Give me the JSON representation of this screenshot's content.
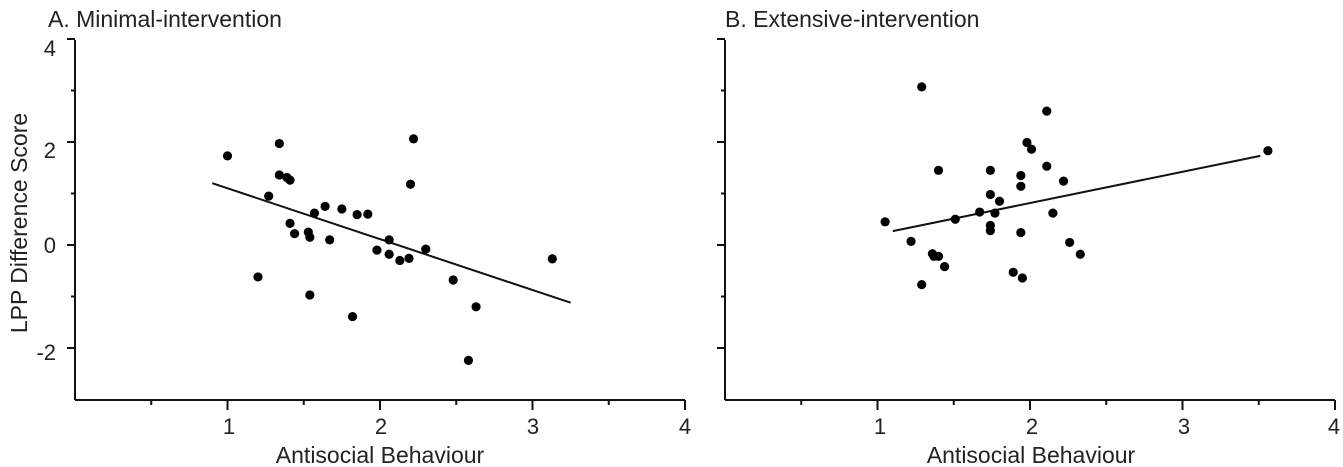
{
  "figure": {
    "ylabel": "LPP Difference Score"
  },
  "chart_data": [
    {
      "type": "scatter",
      "title": "A. Minimal-intervention",
      "xlabel": "Antisocial Behaviour",
      "ylabel": "LPP Difference Score",
      "xlim": [
        0,
        4
      ],
      "ylim": [
        -3,
        4
      ],
      "x_major_ticks": [
        1,
        2,
        3,
        4
      ],
      "y_major_ticks": [
        -2,
        0,
        2,
        4
      ],
      "grid": false,
      "points": [
        {
          "x": 1.0,
          "y": 1.73
        },
        {
          "x": 1.2,
          "y": -0.62
        },
        {
          "x": 1.27,
          "y": 0.95
        },
        {
          "x": 1.34,
          "y": 1.97
        },
        {
          "x": 1.34,
          "y": 1.36
        },
        {
          "x": 1.39,
          "y": 1.31
        },
        {
          "x": 1.41,
          "y": 1.26
        },
        {
          "x": 1.41,
          "y": 0.42
        },
        {
          "x": 1.44,
          "y": 0.22
        },
        {
          "x": 1.53,
          "y": 0.25
        },
        {
          "x": 1.54,
          "y": 0.15
        },
        {
          "x": 1.54,
          "y": -0.97
        },
        {
          "x": 1.57,
          "y": 0.62
        },
        {
          "x": 1.64,
          "y": 0.75
        },
        {
          "x": 1.67,
          "y": 0.1
        },
        {
          "x": 1.75,
          "y": 0.7
        },
        {
          "x": 1.82,
          "y": -1.39
        },
        {
          "x": 1.85,
          "y": 0.59
        },
        {
          "x": 1.92,
          "y": 0.6
        },
        {
          "x": 1.98,
          "y": -0.1
        },
        {
          "x": 2.06,
          "y": 0.1
        },
        {
          "x": 2.06,
          "y": -0.18
        },
        {
          "x": 2.13,
          "y": -0.3
        },
        {
          "x": 2.19,
          "y": -0.26
        },
        {
          "x": 2.2,
          "y": 1.18
        },
        {
          "x": 2.22,
          "y": 2.06
        },
        {
          "x": 2.3,
          "y": -0.08
        },
        {
          "x": 2.48,
          "y": -0.68
        },
        {
          "x": 2.58,
          "y": -2.24
        },
        {
          "x": 2.63,
          "y": -1.2
        },
        {
          "x": 3.13,
          "y": -0.27
        }
      ],
      "fit_line": {
        "x": [
          0.9,
          3.25
        ],
        "y": [
          1.2,
          -1.12
        ]
      }
    },
    {
      "type": "scatter",
      "title": "B. Extensive-intervention",
      "xlabel": "Antisocial Behaviour",
      "xlim": [
        0,
        4
      ],
      "ylim": [
        -3,
        4
      ],
      "x_major_ticks": [
        1,
        2,
        3,
        4
      ],
      "y_major_ticks": [
        -2,
        0,
        2,
        4
      ],
      "grid": false,
      "points": [
        {
          "x": 1.05,
          "y": 0.45
        },
        {
          "x": 1.22,
          "y": 0.07
        },
        {
          "x": 1.29,
          "y": 3.07
        },
        {
          "x": 1.29,
          "y": -0.77
        },
        {
          "x": 1.36,
          "y": -0.17
        },
        {
          "x": 1.37,
          "y": -0.22
        },
        {
          "x": 1.4,
          "y": -0.22
        },
        {
          "x": 1.4,
          "y": 1.45
        },
        {
          "x": 1.44,
          "y": -0.42
        },
        {
          "x": 1.51,
          "y": 0.5
        },
        {
          "x": 1.67,
          "y": 0.64
        },
        {
          "x": 1.74,
          "y": 1.45
        },
        {
          "x": 1.74,
          "y": 0.98
        },
        {
          "x": 1.74,
          "y": 0.38
        },
        {
          "x": 1.74,
          "y": 0.28
        },
        {
          "x": 1.77,
          "y": 0.62
        },
        {
          "x": 1.8,
          "y": 0.85
        },
        {
          "x": 1.89,
          "y": -0.53
        },
        {
          "x": 1.94,
          "y": 1.35
        },
        {
          "x": 1.94,
          "y": 1.14
        },
        {
          "x": 1.94,
          "y": 0.24
        },
        {
          "x": 1.95,
          "y": -0.64
        },
        {
          "x": 1.98,
          "y": 1.99
        },
        {
          "x": 2.01,
          "y": 1.86
        },
        {
          "x": 2.11,
          "y": 2.6
        },
        {
          "x": 2.11,
          "y": 1.53
        },
        {
          "x": 2.15,
          "y": 0.62
        },
        {
          "x": 2.22,
          "y": 1.24
        },
        {
          "x": 2.26,
          "y": 0.05
        },
        {
          "x": 2.33,
          "y": -0.18
        },
        {
          "x": 3.56,
          "y": 1.83
        }
      ],
      "fit_line": {
        "x": [
          1.1,
          3.51
        ],
        "y": [
          0.27,
          1.73
        ]
      }
    }
  ]
}
